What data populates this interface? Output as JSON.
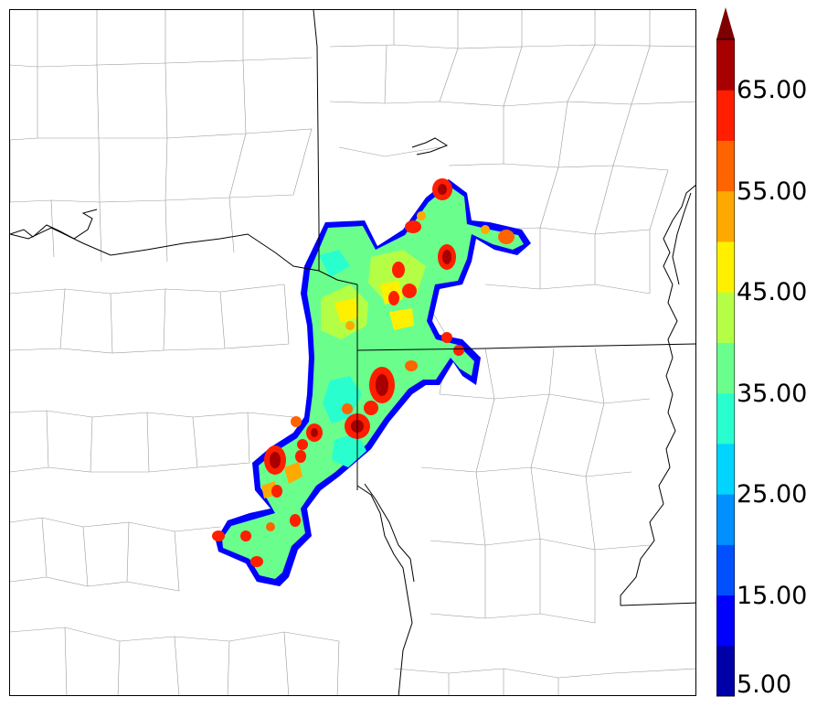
{
  "map": {
    "variable_name": "reflectivity",
    "colors": {
      "state_border": "#000000",
      "county_border": "#999999",
      "river": "#000000"
    }
  },
  "colorbar": {
    "bins": [
      {
        "from": 5,
        "to": 10,
        "color": "#0000a8"
      },
      {
        "from": 10,
        "to": 15,
        "color": "#0000ff"
      },
      {
        "from": 15,
        "to": 20,
        "color": "#0050ff"
      },
      {
        "from": 20,
        "to": 25,
        "color": "#0090ff"
      },
      {
        "from": 25,
        "to": 30,
        "color": "#00d4ff"
      },
      {
        "from": 30,
        "to": 35,
        "color": "#29ffce"
      },
      {
        "from": 35,
        "to": 40,
        "color": "#6aff8c"
      },
      {
        "from": 40,
        "to": 45,
        "color": "#b4ff46"
      },
      {
        "from": 45,
        "to": 50,
        "color": "#fff000"
      },
      {
        "from": 50,
        "to": 55,
        "color": "#ffa800"
      },
      {
        "from": 55,
        "to": 60,
        "color": "#ff6400"
      },
      {
        "from": 60,
        "to": 65,
        "color": "#ff1e00"
      },
      {
        "from": 65,
        "to": 70,
        "color": "#a80000"
      }
    ],
    "extend_color": "#7f0000",
    "labels": [
      {
        "value": 5,
        "text": "5.00"
      },
      {
        "value": 15,
        "text": "15.00"
      },
      {
        "value": 25,
        "text": "25.00"
      },
      {
        "value": 35,
        "text": "35.00"
      },
      {
        "value": 45,
        "text": "45.00"
      },
      {
        "value": 55,
        "text": "55.00"
      },
      {
        "value": 65,
        "text": "65.00"
      }
    ]
  }
}
